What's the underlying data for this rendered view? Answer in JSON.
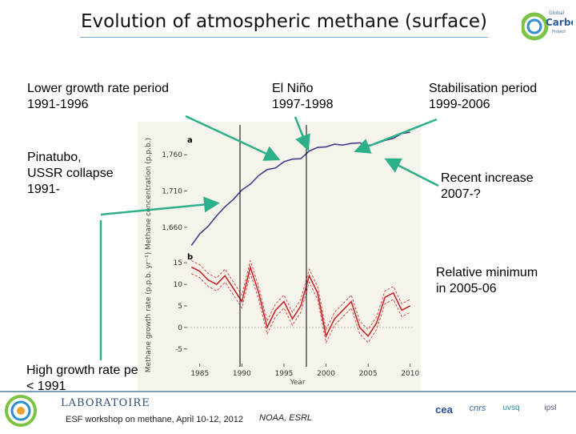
{
  "slide": {
    "title": "Evolution of atmospheric methane (surface)",
    "logo_text": [
      "Global",
      "Carbon",
      "Project"
    ],
    "footer": "ESF workshop on methane, April 10-12, 2012",
    "credit": "NOAA, ESRL",
    "lab_name": "LABORATOIRE",
    "partner_logos": [
      "cea",
      "cnrs",
      "uvsq",
      "ipsl"
    ]
  },
  "annotations": {
    "lower_growth": [
      "Lower growth rate period",
      "1991-1996"
    ],
    "el_nino": [
      "El Niño",
      "1997-1998"
    ],
    "stabilisation": [
      "Stabilisation period",
      "1999-2006"
    ],
    "pinatubo": [
      "Pinatubo,",
      "USSR collapse",
      "1991-"
    ],
    "recent": [
      "Recent increase",
      "2007-?"
    ],
    "relative_min": [
      "Relative minimum",
      "in 2005-06"
    ],
    "high_growth": [
      "High growth rate period",
      "< 1991"
    ]
  },
  "colors": {
    "arrow": "#2bb08a",
    "series_concentration": "#4a3a8c",
    "series_growth": "#c8282b",
    "figure_bg": "#f6f3ea"
  },
  "chart_data": [
    {
      "type": "line",
      "panel_label": "a",
      "ylabel": "Methane concentration (p.p.b.)",
      "yticks": [
        "1,760",
        "1,710",
        "1,660"
      ],
      "ylim": [
        1640,
        1790
      ],
      "xlim": [
        1983.5,
        2010.5
      ],
      "x": [
        1984,
        1985,
        1986,
        1987,
        1988,
        1989,
        1990,
        1991,
        1992,
        1993,
        1994,
        1995,
        1996,
        1997,
        1998,
        1999,
        2000,
        2001,
        2002,
        2003,
        2004,
        2005,
        2006,
        2007,
        2008,
        2009,
        2010
      ],
      "series": [
        {
          "values": [
            1635,
            1650,
            1663,
            1675,
            1688,
            1700,
            1710,
            1720,
            1732,
            1738,
            1743,
            1750,
            1753,
            1756,
            1764,
            1770,
            1772,
            1773,
            1774,
            1776,
            1775,
            1774,
            1775,
            1779,
            1784,
            1788,
            1791
          ]
        }
      ]
    },
    {
      "type": "line",
      "panel_label": "b",
      "xlabel": "Year",
      "ylabel": "Methane growth rate (p.p.b. yr⁻¹)",
      "yticks": [
        "15",
        "10",
        "5",
        "0",
        "-5"
      ],
      "xticks": [
        "1985",
        "1990",
        "1995",
        "2000",
        "2005",
        "2010"
      ],
      "ylim": [
        -8,
        18
      ],
      "xlim": [
        1983.5,
        2010.5
      ],
      "x": [
        1984,
        1985,
        1986,
        1987,
        1988,
        1989,
        1990,
        1991,
        1992,
        1993,
        1994,
        1995,
        1996,
        1997,
        1998,
        1999,
        2000,
        2001,
        2002,
        2003,
        2004,
        2005,
        2006,
        2007,
        2008,
        2009,
        2010
      ],
      "series": [
        {
          "values": [
            14,
            13,
            11,
            10,
            12,
            9,
            6,
            14,
            8,
            0,
            4,
            6,
            2,
            5,
            12,
            8,
            -2,
            2,
            4,
            6,
            0,
            -2,
            1,
            7,
            8,
            4,
            5
          ]
        }
      ]
    }
  ]
}
